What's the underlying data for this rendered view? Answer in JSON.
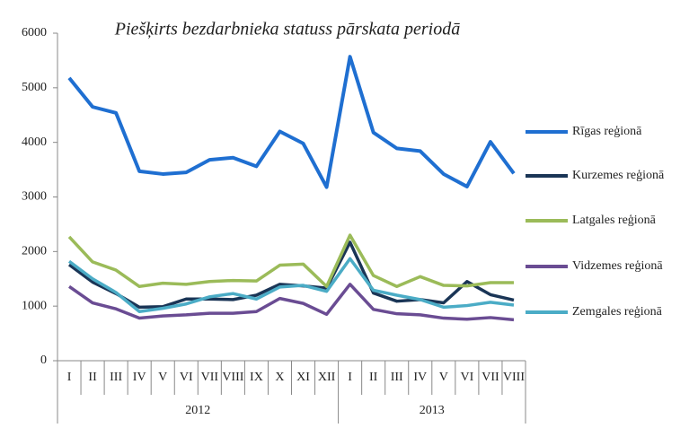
{
  "chart_data": {
    "type": "line",
    "title": "Piešķirts bezdarbnieka statuss pārskata periodā",
    "category_groups": [
      {
        "label": "2012",
        "categories": [
          "I",
          "II",
          "III",
          "IV",
          "V",
          "VI",
          "VII",
          "VIII",
          "IX",
          "X",
          "XI",
          "XII"
        ]
      },
      {
        "label": "2013",
        "categories": [
          "I",
          "II",
          "III",
          "IV",
          "V",
          "VI",
          "VII",
          "VIII"
        ]
      }
    ],
    "ylim": [
      0,
      6000
    ],
    "yticks": [
      0,
      1000,
      2000,
      3000,
      4000,
      5000,
      6000
    ],
    "grid": false,
    "legend": "right",
    "series": [
      {
        "name": "Rīgas reģionā",
        "color": "#1f6fd1",
        "values": [
          5180,
          4650,
          4540,
          3470,
          3420,
          3450,
          3680,
          3720,
          3560,
          4200,
          3980,
          3180,
          5570,
          4180,
          3890,
          3840,
          3420,
          3190,
          4010,
          3430
        ]
      },
      {
        "name": "Kurzemes reģionā",
        "color": "#1a3556",
        "values": [
          1760,
          1440,
          1230,
          980,
          990,
          1130,
          1130,
          1120,
          1200,
          1400,
          1370,
          1330,
          2170,
          1240,
          1090,
          1120,
          1060,
          1450,
          1210,
          1110
        ]
      },
      {
        "name": "Latgales reģionā",
        "color": "#9bbb59",
        "values": [
          2270,
          1810,
          1660,
          1360,
          1420,
          1400,
          1450,
          1470,
          1460,
          1750,
          1770,
          1360,
          2300,
          1560,
          1360,
          1540,
          1380,
          1370,
          1430,
          1430
        ]
      },
      {
        "name": "Vidzemes reģionā",
        "color": "#6a4c93",
        "values": [
          1360,
          1060,
          950,
          780,
          820,
          840,
          870,
          870,
          900,
          1140,
          1050,
          850,
          1400,
          940,
          860,
          840,
          780,
          760,
          790,
          750
        ]
      },
      {
        "name": "Zemgales reģionā",
        "color": "#4bacc6",
        "values": [
          1820,
          1500,
          1250,
          900,
          960,
          1040,
          1170,
          1230,
          1130,
          1350,
          1380,
          1270,
          1870,
          1290,
          1200,
          1120,
          980,
          1010,
          1070,
          1020
        ]
      }
    ]
  }
}
